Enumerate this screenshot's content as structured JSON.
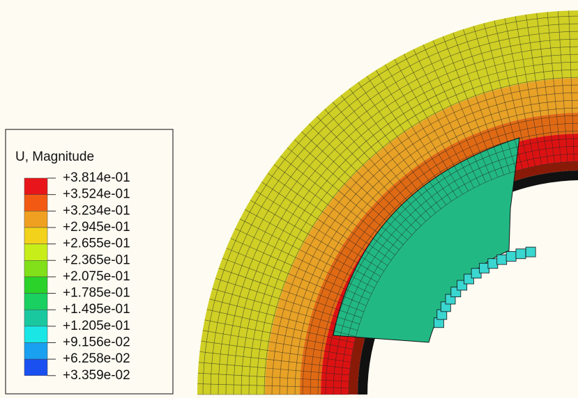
{
  "legend": {
    "title": "U, Magnitude",
    "levels": [
      "+3.814e-01",
      "+3.524e-01",
      "+3.234e-01",
      "+2.945e-01",
      "+2.655e-01",
      "+2.365e-01",
      "+2.075e-01",
      "+1.785e-01",
      "+1.495e-01",
      "+1.205e-01",
      "+9.156e-02",
      "+6.258e-02",
      "+3.359e-02"
    ]
  }
}
